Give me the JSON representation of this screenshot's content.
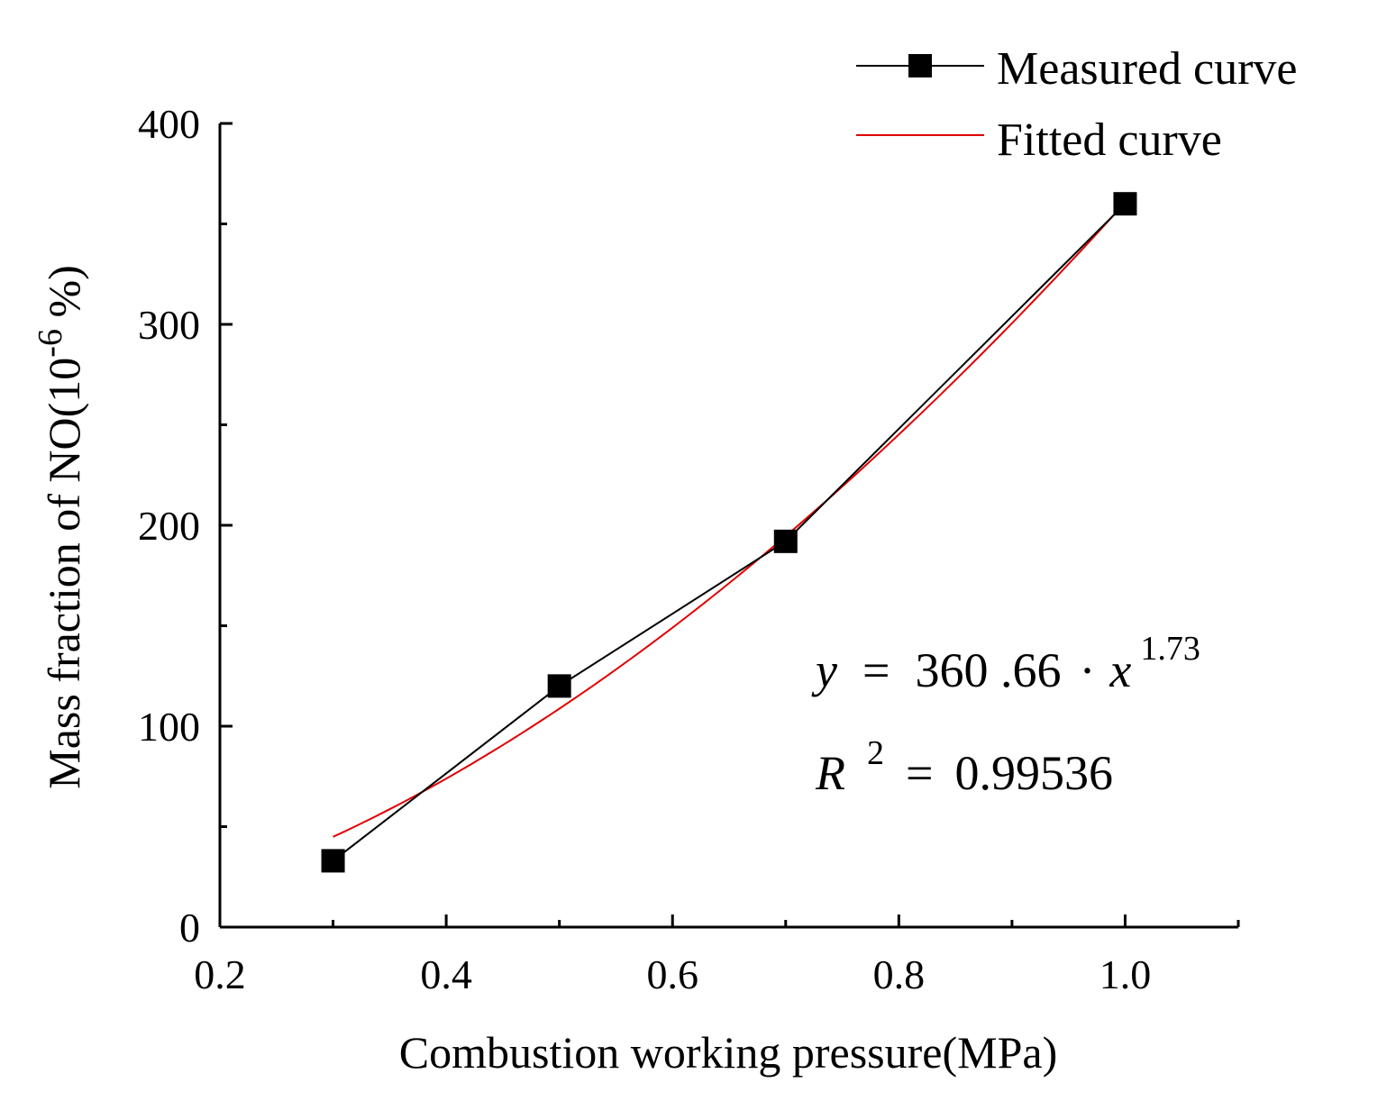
{
  "chart_data": {
    "type": "line",
    "title": "",
    "xlabel": "Combustion working pressure(MPa)",
    "ylabel_main": "Mass fraction of NO(10",
    "ylabel_sup": "-6",
    "ylabel_tail": " %)",
    "xlim": [
      0.2,
      1.1
    ],
    "ylim": [
      0,
      400
    ],
    "x_ticks": [
      0.2,
      0.4,
      0.6,
      0.8,
      1.0
    ],
    "x_tick_labels": [
      "0.2",
      "0.4",
      "0.6",
      "0.8",
      "1.0"
    ],
    "x_minor_ticks": [
      0.3,
      0.5,
      0.7,
      0.9,
      1.1
    ],
    "y_ticks": [
      0,
      100,
      200,
      300,
      400
    ],
    "y_tick_labels": [
      "0",
      "100",
      "200",
      "300",
      "400"
    ],
    "y_minor_ticks": [
      50,
      150,
      250,
      350
    ],
    "series": [
      {
        "name": "Measured curve",
        "color": "#000000",
        "marker": "square",
        "x": [
          0.3,
          0.5,
          0.7,
          1.0
        ],
        "y": [
          33,
          120,
          192,
          360
        ]
      },
      {
        "name": "Fitted curve",
        "color": "#e00000",
        "marker": "none",
        "formula": {
          "a": 360.66,
          "b": 1.73
        },
        "x_range": [
          0.3,
          1.0
        ]
      }
    ],
    "legend_position": "top-right",
    "annotation": {
      "eq_y": "y",
      "eq_equals": "=",
      "eq_coef": "360 .66",
      "eq_dot": "·",
      "eq_x": "x",
      "eq_exp": "1.73",
      "r_label": "R",
      "r_exp": "2",
      "r_equals": "=",
      "r_value": "0.99536"
    }
  }
}
